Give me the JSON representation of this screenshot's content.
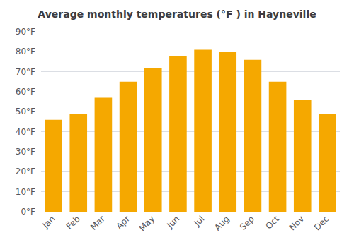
{
  "chart_data": {
    "type": "bar",
    "title": "Average monthly temperatures (°F ) in Hayneville",
    "categories": [
      "Jan",
      "Feb",
      "Mar",
      "Apr",
      "May",
      "Jun",
      "Jul",
      "Aug",
      "Sep",
      "Oct",
      "Nov",
      "Dec"
    ],
    "values": [
      46,
      49,
      57,
      65,
      72,
      78,
      81,
      80,
      76,
      65,
      56,
      49
    ],
    "color": "#F5A800",
    "ylim": [
      0,
      90
    ],
    "yticks": [
      {
        "value": 0,
        "label": "0°F"
      },
      {
        "value": 10,
        "label": "10°F"
      },
      {
        "value": 20,
        "label": "20°F"
      },
      {
        "value": 30,
        "label": "30°F"
      },
      {
        "value": 40,
        "label": "40°F"
      },
      {
        "value": 50,
        "label": "50°F"
      },
      {
        "value": 60,
        "label": "60°F"
      },
      {
        "value": 70,
        "label": "70°F"
      },
      {
        "value": 80,
        "label": "80°F"
      },
      {
        "value": 90,
        "label": "90°F"
      }
    ],
    "grid": true
  }
}
